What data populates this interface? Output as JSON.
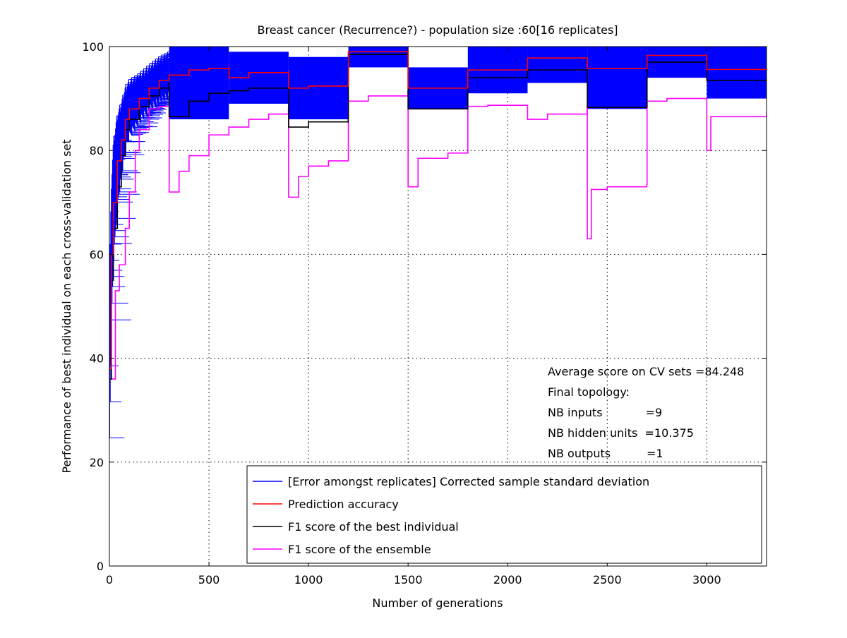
{
  "chart_data": {
    "type": "line",
    "title": "Breast cancer (Recurrence?) - population size :60[16 replicates]",
    "xlabel": "Number of generations",
    "ylabel": "Performance of best individual on each cross-validation set",
    "xlim": [
      0,
      3300
    ],
    "ylim": [
      0,
      100
    ],
    "xticks": [
      0,
      500,
      1000,
      1500,
      2000,
      2500,
      3000
    ],
    "yticks": [
      0,
      20,
      40,
      60,
      80,
      100
    ],
    "grid": true,
    "legend_position": "bottom-right",
    "colors": {
      "error": "#0000ff",
      "accuracy": "#ff0000",
      "best": "#000000",
      "ensemble": "#ff00ff"
    },
    "annotations": [
      "Average score on CV sets =84.248",
      "Final topology:",
      "NB inputs            =9",
      "NB hidden units  =10.375",
      "NB outputs          =1"
    ],
    "series": [
      {
        "name": "Prediction accuracy",
        "x": [
          0,
          10,
          20,
          40,
          60,
          80,
          100,
          150,
          200,
          250,
          300,
          400,
          500,
          600,
          601,
          700,
          899,
          900,
          1000,
          1199,
          1200,
          1499,
          1500,
          1799,
          1800,
          2099,
          2100,
          2399,
          2400,
          2699,
          2700,
          2999,
          3000,
          3300
        ],
        "y": [
          38,
          60,
          70,
          78,
          82,
          86,
          88,
          90,
          92,
          93.5,
          94.5,
          95.5,
          95.8,
          96,
          94,
          95,
          95.2,
          92,
          92.4,
          92.6,
          99,
          99.2,
          92,
          92.2,
          95.5,
          95.6,
          97.8,
          97.8,
          95.8,
          95.8,
          98.3,
          98.3,
          95.6,
          96
        ]
      },
      {
        "name": "F1 score of the best individual",
        "x": [
          0,
          10,
          20,
          40,
          60,
          80,
          100,
          150,
          200,
          250,
          299,
          300,
          400,
          500,
          600,
          700,
          899,
          900,
          1000,
          1199,
          1200,
          1499,
          1500,
          1799,
          1800,
          2099,
          2100,
          2399,
          2400,
          2699,
          2700,
          2999,
          3000,
          3300
        ],
        "y": [
          36,
          55,
          65,
          73,
          79,
          84,
          86,
          88.5,
          90.5,
          92,
          93,
          86.5,
          89.5,
          91,
          91.5,
          92,
          92.5,
          84.5,
          85.5,
          86.3,
          98.5,
          98.8,
          88,
          88,
          94,
          94,
          95.5,
          95.5,
          88.3,
          88.3,
          97,
          97,
          93.5,
          94
        ]
      },
      {
        "name": "F1 score of the ensemble",
        "x": [
          0,
          30,
          50,
          80,
          100,
          130,
          150,
          200,
          250,
          299,
          300,
          350,
          400,
          500,
          600,
          700,
          800,
          899,
          900,
          950,
          1000,
          1100,
          1199,
          1200,
          1300,
          1499,
          1500,
          1550,
          1700,
          1799,
          1800,
          1900,
          2099,
          2100,
          2200,
          2399,
          2400,
          2420,
          2500,
          2699,
          2700,
          2800,
          2999,
          3000,
          3020,
          3300
        ],
        "y": [
          36,
          53,
          58,
          65,
          72,
          80,
          84,
          88,
          88.5,
          88.5,
          72,
          76,
          79,
          83,
          84.5,
          86,
          87,
          88,
          71,
          75,
          77,
          78,
          78,
          89.5,
          90.5,
          91.5,
          73,
          78.5,
          79.5,
          79.5,
          88.5,
          88.7,
          88.7,
          86,
          87,
          88.5,
          63,
          72.5,
          73,
          73.5,
          89.5,
          90,
          90,
          80,
          86.5,
          87.5
        ]
      },
      {
        "name": "[Error amongst replicates] Corrected sample standard deviation",
        "bands": [
          {
            "x": [
              300,
              600
            ],
            "low": 86,
            "high": 100
          },
          {
            "x": [
              600,
              900
            ],
            "low": 89,
            "high": 99
          },
          {
            "x": [
              900,
              1200
            ],
            "low": 86,
            "high": 98
          },
          {
            "x": [
              1200,
              1500
            ],
            "low": 96,
            "high": 100
          },
          {
            "x": [
              1500,
              1800
            ],
            "low": 88,
            "high": 96
          },
          {
            "x": [
              1800,
              2100
            ],
            "low": 91,
            "high": 100
          },
          {
            "x": [
              2100,
              2400
            ],
            "low": 93,
            "high": 100
          },
          {
            "x": [
              2400,
              2700
            ],
            "low": 88,
            "high": 100
          },
          {
            "x": [
              2700,
              3000
            ],
            "low": 94,
            "high": 100
          },
          {
            "x": [
              3000,
              3300
            ],
            "low": 90,
            "high": 100
          }
        ]
      }
    ]
  }
}
